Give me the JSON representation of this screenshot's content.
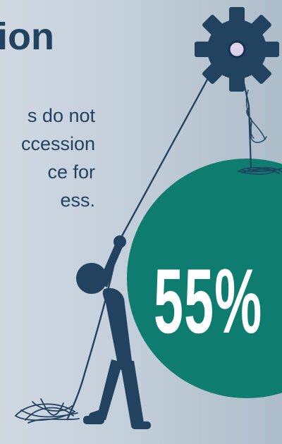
{
  "headline": {
    "text": "ion"
  },
  "body_lines": [
    "s do not",
    "ccession",
    "ce for",
    "ess."
  ],
  "stat": {
    "value": "55%"
  },
  "colors": {
    "navy": "#21435f",
    "teal": "#0f7c70",
    "background": "#c3cfda",
    "gear_hub": "#ddd3ee"
  },
  "icons": [
    "gear-icon",
    "stick-figure-icon",
    "boulder-icon",
    "rope-icon"
  ]
}
